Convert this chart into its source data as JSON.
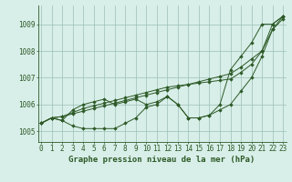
{
  "xlabel": "Graphe pression niveau de la mer (hPa)",
  "background_color": "#d8eee8",
  "grid_color": "#9bbfb5",
  "line_color": "#2d5a27",
  "marker_color": "#2d5a27",
  "x": [
    0,
    1,
    2,
    3,
    4,
    5,
    6,
    7,
    8,
    9,
    10,
    11,
    12,
    13,
    14,
    15,
    16,
    17,
    18,
    19,
    20,
    21,
    22,
    23
  ],
  "series": [
    [
      1005.3,
      1005.5,
      1005.4,
      1005.2,
      1005.1,
      1005.1,
      1005.1,
      1005.1,
      1005.3,
      1005.5,
      1005.9,
      1006.0,
      1006.3,
      1006.0,
      1005.5,
      1005.5,
      1005.6,
      1006.0,
      1007.3,
      1007.8,
      1008.3,
      1009.0,
      1009.0,
      1009.3
    ],
    [
      1005.3,
      1005.5,
      1005.4,
      1005.8,
      1006.0,
      1006.1,
      1006.2,
      1006.0,
      1006.1,
      1006.2,
      1006.0,
      1006.1,
      1006.3,
      1006.0,
      1005.5,
      1005.5,
      1005.6,
      1005.8,
      1006.0,
      1006.5,
      1007.0,
      1007.8,
      1008.8,
      1009.2
    ],
    [
      1005.3,
      1005.5,
      1005.55,
      1005.65,
      1005.75,
      1005.85,
      1005.95,
      1006.05,
      1006.15,
      1006.25,
      1006.35,
      1006.45,
      1006.55,
      1006.65,
      1006.75,
      1006.85,
      1006.95,
      1007.05,
      1007.15,
      1007.4,
      1007.7,
      1008.0,
      1008.8,
      1009.3
    ],
    [
      1005.3,
      1005.5,
      1005.55,
      1005.7,
      1005.85,
      1005.95,
      1006.05,
      1006.15,
      1006.25,
      1006.35,
      1006.45,
      1006.55,
      1006.65,
      1006.7,
      1006.75,
      1006.8,
      1006.85,
      1006.9,
      1006.95,
      1007.2,
      1007.5,
      1008.0,
      1009.0,
      1009.3
    ]
  ],
  "ylim": [
    1004.6,
    1009.7
  ],
  "yticks": [
    1005,
    1006,
    1007,
    1008,
    1009
  ],
  "xticks": [
    0,
    1,
    2,
    3,
    4,
    5,
    6,
    7,
    8,
    9,
    10,
    11,
    12,
    13,
    14,
    15,
    16,
    17,
    18,
    19,
    20,
    21,
    22,
    23
  ],
  "xlim": [
    -0.3,
    23.3
  ],
  "tick_fontsize": 5.5,
  "label_fontsize": 6.5,
  "figwidth": 3.2,
  "figheight": 2.0,
  "dpi": 100
}
